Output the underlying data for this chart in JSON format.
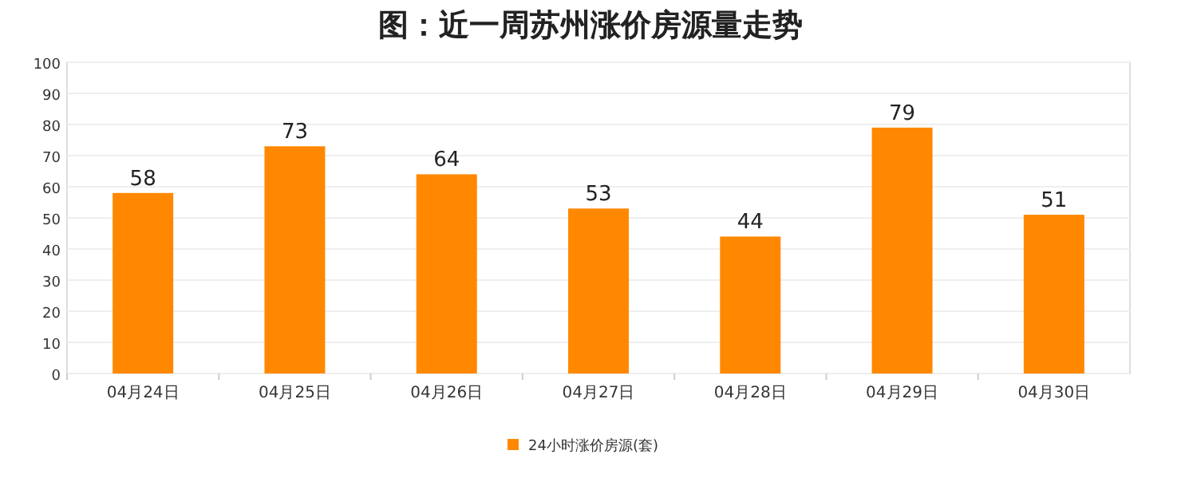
{
  "chart_data": {
    "type": "bar",
    "title": "图：近一周苏州涨价房源量走势",
    "categories": [
      "04月24日",
      "04月25日",
      "04月26日",
      "04月27日",
      "04月28日",
      "04月29日",
      "04月30日"
    ],
    "series": [
      {
        "name": "24小时涨价房源(套)",
        "color": "#ff8800",
        "values": [
          58,
          73,
          64,
          53,
          44,
          79,
          51
        ]
      }
    ],
    "ylim": [
      0,
      100
    ],
    "yticks": [
      0,
      10,
      20,
      30,
      40,
      50,
      60,
      70,
      80,
      90,
      100
    ],
    "grid": "y",
    "legend": "bottom",
    "data_labels": true
  }
}
